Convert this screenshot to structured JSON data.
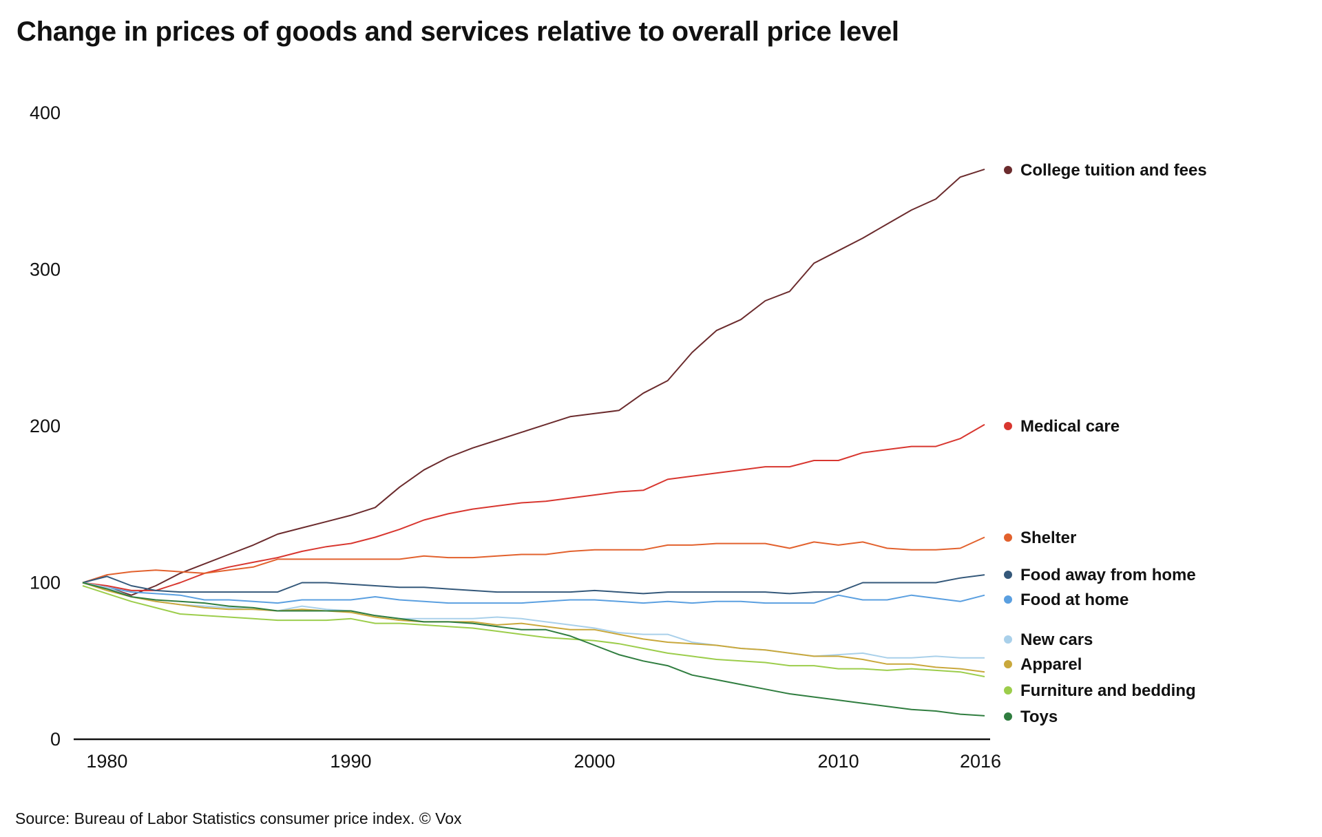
{
  "chart_data": {
    "type": "line",
    "title": "Change in prices of goods and services relative to overall price level",
    "source": "Source: Bureau of Labor Statistics consumer price index. © Vox",
    "xlabel": "",
    "ylabel": "",
    "x_start": 1979,
    "x_end": 2016,
    "xlim": [
      1979,
      2016
    ],
    "ylim": [
      0,
      400
    ],
    "x_ticks": [
      "1980",
      "1990",
      "2000",
      "2010",
      "2016"
    ],
    "y_ticks": [
      "0",
      "100",
      "200",
      "300",
      "400"
    ],
    "grid": false,
    "legend_placement": "right, labels at line ends",
    "series": [
      {
        "name": "College tuition and fees",
        "color": "#6b2b2d",
        "values": [
          100,
          97,
          92,
          98,
          106,
          112,
          118,
          124,
          131,
          135,
          139,
          143,
          148,
          161,
          172,
          180,
          186,
          191,
          196,
          201,
          206,
          208,
          210,
          221,
          229,
          247,
          261,
          268,
          280,
          286,
          304,
          312,
          320,
          329,
          338,
          345,
          359,
          364
        ]
      },
      {
        "name": "Medical care",
        "color": "#d8362f",
        "values": [
          100,
          98,
          95,
          95,
          100,
          106,
          110,
          113,
          116,
          120,
          123,
          125,
          129,
          134,
          140,
          144,
          147,
          149,
          151,
          152,
          154,
          156,
          158,
          159,
          166,
          168,
          170,
          172,
          174,
          174,
          178,
          178,
          183,
          185,
          187,
          187,
          192,
          201
        ]
      },
      {
        "name": "Shelter",
        "color": "#e2612d",
        "values": [
          100,
          105,
          107,
          108,
          107,
          106,
          108,
          110,
          115,
          115,
          115,
          115,
          115,
          115,
          117,
          116,
          116,
          117,
          118,
          118,
          120,
          121,
          121,
          121,
          124,
          124,
          125,
          125,
          125,
          122,
          126,
          124,
          126,
          122,
          121,
          121,
          122,
          129
        ]
      },
      {
        "name": "Food away from home",
        "color": "#34587a",
        "values": [
          100,
          104,
          98,
          95,
          94,
          94,
          94,
          94,
          94,
          100,
          100,
          99,
          98,
          97,
          97,
          96,
          95,
          94,
          94,
          94,
          94,
          95,
          94,
          93,
          94,
          94,
          94,
          94,
          94,
          93,
          94,
          94,
          100,
          100,
          100,
          100,
          103,
          105
        ]
      },
      {
        "name": "Food at home",
        "color": "#5a9fe0",
        "values": [
          100,
          97,
          94,
          93,
          92,
          89,
          89,
          88,
          87,
          89,
          89,
          89,
          91,
          89,
          88,
          87,
          87,
          87,
          87,
          88,
          89,
          89,
          88,
          87,
          88,
          87,
          88,
          88,
          87,
          87,
          87,
          92,
          89,
          89,
          92,
          90,
          88,
          92
        ]
      },
      {
        "name": "New cars",
        "color": "#a9d0ea",
        "values": [
          100,
          97,
          91,
          88,
          86,
          85,
          84,
          83,
          82,
          85,
          83,
          82,
          79,
          77,
          77,
          77,
          77,
          78,
          77,
          75,
          73,
          71,
          68,
          67,
          67,
          62,
          60,
          58,
          57,
          55,
          53,
          54,
          55,
          52,
          52,
          53,
          52,
          52
        ]
      },
      {
        "name": "Apparel",
        "color": "#c9a83c",
        "values": [
          100,
          95,
          91,
          88,
          86,
          84,
          83,
          83,
          82,
          83,
          82,
          81,
          78,
          76,
          75,
          75,
          75,
          73,
          74,
          72,
          70,
          70,
          67,
          64,
          62,
          61,
          60,
          58,
          57,
          55,
          53,
          53,
          51,
          48,
          48,
          46,
          45,
          43
        ]
      },
      {
        "name": "Furniture and bedding",
        "color": "#9ccd4b",
        "values": [
          98,
          93,
          88,
          84,
          80,
          79,
          78,
          77,
          76,
          76,
          76,
          77,
          74,
          74,
          73,
          72,
          71,
          69,
          67,
          65,
          64,
          63,
          61,
          58,
          55,
          53,
          51,
          50,
          49,
          47,
          47,
          45,
          45,
          44,
          45,
          44,
          43,
          40
        ]
      },
      {
        "name": "Toys",
        "color": "#2f7d3f",
        "values": [
          100,
          96,
          91,
          89,
          88,
          87,
          85,
          84,
          82,
          82,
          82,
          82,
          79,
          77,
          75,
          75,
          74,
          72,
          70,
          70,
          66,
          60,
          54,
          50,
          47,
          41,
          38,
          35,
          32,
          29,
          27,
          25,
          23,
          21,
          19,
          18,
          16,
          15
        ]
      }
    ]
  }
}
